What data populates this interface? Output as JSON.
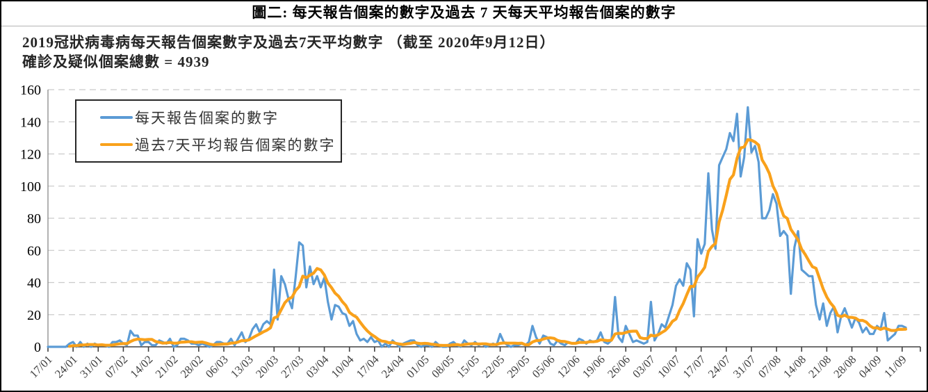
{
  "figure": {
    "caption": "圖二: 每天報告個案的數字及過去 7 天每天平均報告個案的數字"
  },
  "chart_data": {
    "type": "line",
    "title": "2019冠狀病毒病每天報告個案數字及過去7天平均數字 （截至 2020年9月12日）",
    "subtitle": "確診及疑似個案總數 = 4939",
    "total_cases": 4939,
    "as_of_date": "2020年9月12日",
    "x_frequency": "daily",
    "x_start_date": "17/01",
    "x_end_date": "12/09",
    "x_tick_labels": [
      "17/01",
      "24/01",
      "31/01",
      "07/02",
      "14/02",
      "21/02",
      "28/02",
      "06/03",
      "13/03",
      "20/03",
      "27/03",
      "03/04",
      "10/04",
      "17/04",
      "24/04",
      "01/05",
      "08/05",
      "15/05",
      "22/05",
      "29/05",
      "05/06",
      "12/06",
      "19/06",
      "26/06",
      "03/07",
      "10/07",
      "17/07",
      "24/07",
      "31/07",
      "07/08",
      "14/08",
      "21/08",
      "28/08",
      "04/09",
      "11/09"
    ],
    "ylim": [
      0,
      160
    ],
    "y_tick_interval": 20,
    "grid": "horizontal-dashed",
    "legend_position": "top-left-inside",
    "series": [
      {
        "name": "每天報告個案的數字",
        "color": "#5B9BD5",
        "values": [
          0,
          0,
          0,
          0,
          0,
          0,
          2,
          3,
          0,
          3,
          0,
          2,
          0,
          2,
          1,
          1,
          1,
          0,
          3,
          3,
          4,
          2,
          1,
          10,
          7,
          7,
          1,
          3,
          3,
          1,
          1,
          4,
          3,
          2,
          5,
          0,
          1,
          5,
          5,
          4,
          2,
          2,
          1,
          2,
          1,
          0,
          1,
          3,
          3,
          2,
          2,
          5,
          1,
          5,
          9,
          3,
          5,
          11,
          14,
          9,
          14,
          16,
          14,
          48,
          17,
          44,
          39,
          30,
          24,
          43,
          65,
          63,
          37,
          50,
          39,
          44,
          37,
          43,
          28,
          17,
          26,
          25,
          21,
          20,
          13,
          16,
          8,
          4,
          5,
          3,
          6,
          3,
          4,
          0,
          2,
          0,
          4,
          2,
          0,
          2,
          3,
          4,
          4,
          1,
          0,
          1,
          1,
          0,
          3,
          1,
          0,
          0,
          2,
          3,
          1,
          0,
          4,
          2,
          1,
          3,
          1,
          2,
          0,
          1,
          2,
          1,
          8,
          3,
          1,
          0,
          1,
          1,
          2,
          1,
          3,
          13,
          6,
          2,
          7,
          6,
          2,
          1,
          4,
          2,
          1,
          3,
          2,
          2,
          5,
          4,
          2,
          4,
          3,
          4,
          9,
          3,
          2,
          4,
          31,
          6,
          3,
          13,
          8,
          3,
          4,
          3,
          2,
          3,
          28,
          4,
          8,
          14,
          12,
          19,
          26,
          38,
          42,
          38,
          52,
          48,
          19,
          67,
          58,
          64,
          108,
          73,
          61,
          113,
          118,
          123,
          133,
          128,
          145,
          106,
          118,
          149,
          121,
          125,
          115,
          80,
          80,
          85,
          95,
          89,
          69,
          72,
          69,
          33,
          62,
          72,
          48,
          46,
          44,
          44,
          26,
          17,
          27,
          13,
          21,
          25,
          9,
          19,
          24,
          18,
          12,
          18,
          15,
          9,
          12,
          8,
          8,
          13,
          11,
          21,
          4,
          6,
          8,
          13,
          13,
          12
        ]
      },
      {
        "name": "過去7天平均報告個案的數字",
        "color": "#F9A11B",
        "derived_from": "trailing 7-day mean of series 0, drawn from the 7th day onward"
      }
    ]
  }
}
